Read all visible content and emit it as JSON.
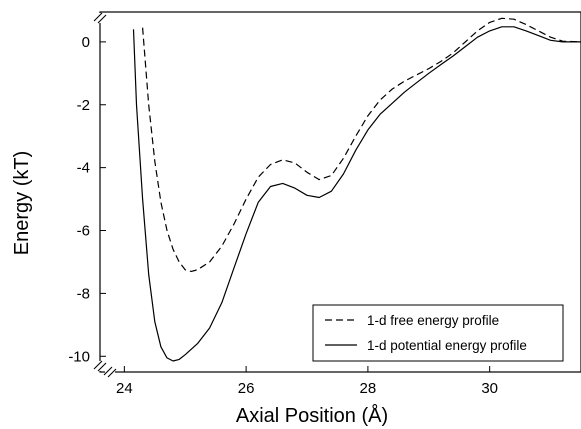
{
  "chart_data": {
    "type": "line",
    "title": "",
    "xlabel": "Axial Position (Å)",
    "ylabel": "Energy (kT)",
    "xlim": [
      23.6,
      31.5
    ],
    "ylim": [
      -10.5,
      0.95
    ],
    "x_ticks": [
      24,
      26,
      28,
      30
    ],
    "y_ticks": [
      0,
      -2,
      -4,
      -6,
      -8,
      -10
    ],
    "grid": false,
    "axis_breaks": [
      "x",
      "y"
    ],
    "legend": {
      "position": "bottom-right"
    },
    "series": [
      {
        "name": "1-d free energy profile",
        "style": "dashed",
        "color": "#000000",
        "points": [
          [
            24.3,
            0.45
          ],
          [
            24.4,
            -2.0
          ],
          [
            24.5,
            -3.8
          ],
          [
            24.6,
            -5.1
          ],
          [
            24.7,
            -6.0
          ],
          [
            24.8,
            -6.6
          ],
          [
            24.9,
            -7.0
          ],
          [
            25.0,
            -7.25
          ],
          [
            25.1,
            -7.3
          ],
          [
            25.2,
            -7.25
          ],
          [
            25.4,
            -7.0
          ],
          [
            25.6,
            -6.5
          ],
          [
            25.8,
            -5.8
          ],
          [
            26.0,
            -5.0
          ],
          [
            26.2,
            -4.3
          ],
          [
            26.4,
            -3.9
          ],
          [
            26.6,
            -3.75
          ],
          [
            26.8,
            -3.85
          ],
          [
            27.0,
            -4.15
          ],
          [
            27.2,
            -4.38
          ],
          [
            27.4,
            -4.25
          ],
          [
            27.6,
            -3.7
          ],
          [
            27.8,
            -3.0
          ],
          [
            28.0,
            -2.35
          ],
          [
            28.2,
            -1.85
          ],
          [
            28.4,
            -1.5
          ],
          [
            28.6,
            -1.25
          ],
          [
            28.8,
            -1.05
          ],
          [
            29.0,
            -0.85
          ],
          [
            29.2,
            -0.62
          ],
          [
            29.4,
            -0.35
          ],
          [
            29.6,
            0.0
          ],
          [
            29.8,
            0.35
          ],
          [
            30.0,
            0.62
          ],
          [
            30.2,
            0.75
          ],
          [
            30.4,
            0.72
          ],
          [
            30.6,
            0.55
          ],
          [
            30.8,
            0.35
          ],
          [
            31.0,
            0.15
          ],
          [
            31.2,
            0.02
          ],
          [
            31.5,
            0.0
          ]
        ]
      },
      {
        "name": "1-d potential energy profile",
        "style": "solid",
        "color": "#000000",
        "points": [
          [
            24.15,
            0.4
          ],
          [
            24.2,
            -2.0
          ],
          [
            24.3,
            -5.0
          ],
          [
            24.4,
            -7.4
          ],
          [
            24.5,
            -8.9
          ],
          [
            24.6,
            -9.7
          ],
          [
            24.7,
            -10.05
          ],
          [
            24.8,
            -10.15
          ],
          [
            24.9,
            -10.1
          ],
          [
            25.0,
            -9.95
          ],
          [
            25.2,
            -9.6
          ],
          [
            25.4,
            -9.1
          ],
          [
            25.6,
            -8.3
          ],
          [
            25.8,
            -7.2
          ],
          [
            26.0,
            -6.1
          ],
          [
            26.2,
            -5.1
          ],
          [
            26.4,
            -4.6
          ],
          [
            26.6,
            -4.5
          ],
          [
            26.8,
            -4.65
          ],
          [
            27.0,
            -4.88
          ],
          [
            27.2,
            -4.95
          ],
          [
            27.4,
            -4.75
          ],
          [
            27.6,
            -4.2
          ],
          [
            27.8,
            -3.45
          ],
          [
            28.0,
            -2.8
          ],
          [
            28.2,
            -2.3
          ],
          [
            28.4,
            -1.95
          ],
          [
            28.6,
            -1.6
          ],
          [
            28.8,
            -1.3
          ],
          [
            29.0,
            -1.0
          ],
          [
            29.2,
            -0.72
          ],
          [
            29.4,
            -0.45
          ],
          [
            29.6,
            -0.15
          ],
          [
            29.8,
            0.15
          ],
          [
            30.0,
            0.35
          ],
          [
            30.2,
            0.48
          ],
          [
            30.4,
            0.48
          ],
          [
            30.6,
            0.35
          ],
          [
            30.8,
            0.2
          ],
          [
            31.0,
            0.05
          ],
          [
            31.2,
            0.0
          ],
          [
            31.5,
            0.0
          ]
        ]
      }
    ]
  }
}
